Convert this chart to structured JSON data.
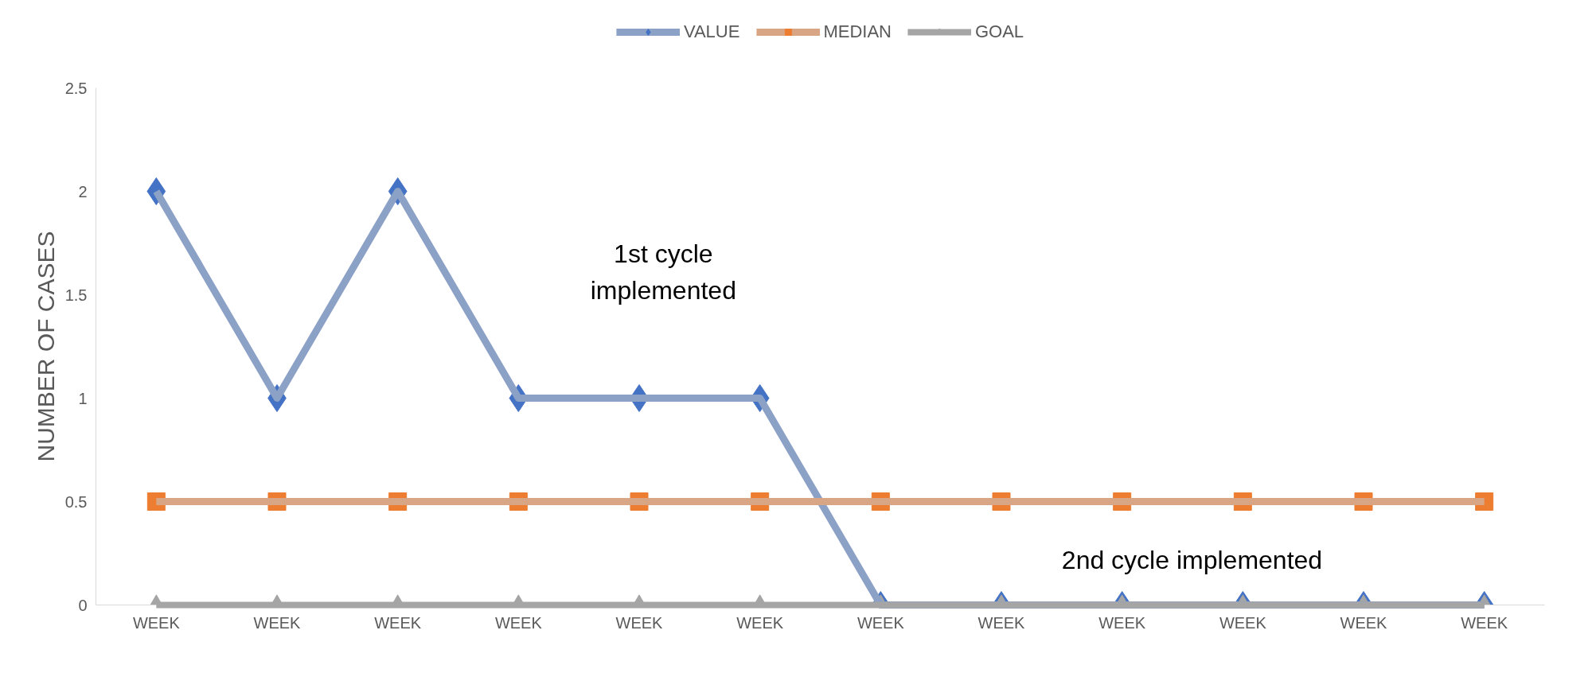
{
  "chart_data": {
    "type": "line",
    "ylabel": "NUMBER OF CASES",
    "categories": [
      "WEEK",
      "WEEK",
      "WEEK",
      "WEEK",
      "WEEK",
      "WEEK",
      "WEEK",
      "WEEK",
      "WEEK",
      "WEEK",
      "WEEK",
      "WEEK"
    ],
    "series": [
      {
        "name": "VALUE",
        "color": "#4472c4",
        "marker": "diamond",
        "values": [
          2,
          1,
          2,
          1,
          1,
          1,
          0,
          0,
          0,
          0,
          0,
          0
        ]
      },
      {
        "name": "MEDIAN",
        "color": "#ed7d31",
        "marker": "square",
        "values": [
          0.5,
          0.5,
          0.5,
          0.5,
          0.5,
          0.5,
          0.5,
          0.5,
          0.5,
          0.5,
          0.5,
          0.5
        ]
      },
      {
        "name": "GOAL",
        "color": "#a5a5a5",
        "marker": "triangle",
        "values": [
          0,
          0,
          0,
          0,
          0,
          0,
          0,
          0,
          0,
          0,
          0,
          0
        ]
      }
    ],
    "ylim": [
      0,
      2.5
    ],
    "yticks": [
      0,
      0.5,
      1,
      1.5,
      2,
      2.5
    ],
    "grid": false,
    "legend": "top",
    "annotations": [
      "1st cycle implemented",
      "2nd cycle implemented"
    ]
  }
}
